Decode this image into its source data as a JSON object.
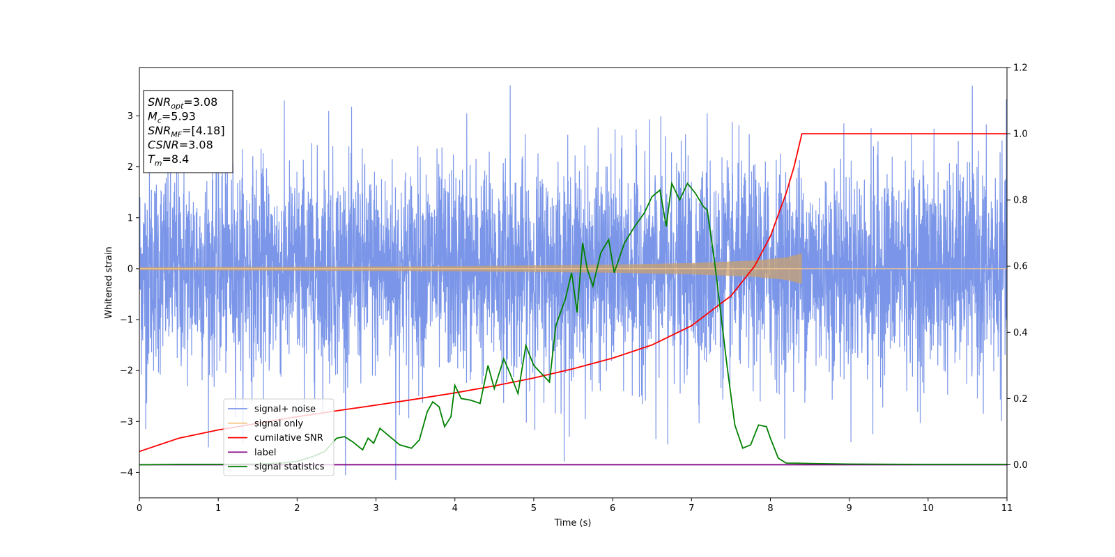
{
  "chart_data": {
    "type": "line",
    "xlabel": "Time (s)",
    "ylabel": "Whitened strain",
    "xlim": [
      0,
      11
    ],
    "ylim_left": [
      -4.5,
      3.95
    ],
    "ylim_right": [
      -0.1,
      1.2
    ],
    "x_ticks": [
      "0",
      "1",
      "2",
      "3",
      "4",
      "5",
      "6",
      "7",
      "8",
      "9",
      "10",
      "11"
    ],
    "y_left_ticks": [
      "3",
      "2",
      "1",
      "0",
      "−1",
      "−2",
      "−3",
      "−4"
    ],
    "y_right_ticks": [
      "1.2",
      "1.0",
      "0.8",
      "0.6",
      "0.4",
      "0.2",
      "0.0"
    ],
    "grid": false,
    "legend_position": "lower-left",
    "legend": [
      {
        "name": "signal+ noise",
        "color": "#7b96e8"
      },
      {
        "name": "signal only",
        "color": "#f5c98c"
      },
      {
        "name": "cumilative SNR",
        "color": "#ff0000"
      },
      {
        "name": "label",
        "color": "#800080"
      },
      {
        "name": "signal statistics",
        "color": "#008000"
      }
    ],
    "info_box": [
      {
        "main": "SNR",
        "sub": "opt",
        "value": "=3.08"
      },
      {
        "main": "M",
        "sub": "c",
        "value": "=5.93"
      },
      {
        "main": "SNR",
        "sub": "MF",
        "value": "=[4.18]"
      },
      {
        "main": "CSNR",
        "sub": "",
        "value": "=3.08"
      },
      {
        "main": "T",
        "sub": "m",
        "value": "=8.4"
      }
    ],
    "series": [
      {
        "name": "signal+ noise",
        "axis": "left",
        "color": "#7b96e8",
        "description_range": [
          -2.4,
          2.4
        ],
        "peaks": [
          {
            "x": 4.7,
            "y": 3.6
          },
          {
            "x": 3.25,
            "y": -4.15
          },
          {
            "x": 6.7,
            "y": -3.45
          },
          {
            "x": 6.55,
            "y": -3.35
          },
          {
            "x": 9.3,
            "y": -3.25
          },
          {
            "x": 0.08,
            "y": -3.15
          },
          {
            "x": 2.4,
            "y": 3.1
          },
          {
            "x": 7.2,
            "y": 3.05
          },
          {
            "x": 4.15,
            "y": 3.05
          },
          {
            "x": 5.45,
            "y": -3.3
          },
          {
            "x": 10.7,
            "y": -2.85
          },
          {
            "x": 1.05,
            "y": 2.9
          }
        ]
      },
      {
        "name": "signal only",
        "axis": "left",
        "color": "#f5c98c",
        "chirp_end": 8.4,
        "envelope": [
          [
            0,
            0.03
          ],
          [
            2,
            0.04
          ],
          [
            4,
            0.05
          ],
          [
            6,
            0.08
          ],
          [
            7,
            0.11
          ],
          [
            7.8,
            0.16
          ],
          [
            8.2,
            0.22
          ],
          [
            8.4,
            0.3
          ]
        ]
      },
      {
        "name": "cumilative SNR",
        "axis": "right",
        "color": "#ff0000",
        "points": [
          [
            0,
            0.04
          ],
          [
            0.5,
            0.08
          ],
          [
            1,
            0.105
          ],
          [
            1.5,
            0.125
          ],
          [
            2,
            0.145
          ],
          [
            2.5,
            0.163
          ],
          [
            3,
            0.18
          ],
          [
            3.5,
            0.198
          ],
          [
            4,
            0.217
          ],
          [
            4.5,
            0.238
          ],
          [
            5,
            0.262
          ],
          [
            5.5,
            0.29
          ],
          [
            6,
            0.322
          ],
          [
            6.5,
            0.362
          ],
          [
            7,
            0.42
          ],
          [
            7.5,
            0.51
          ],
          [
            7.8,
            0.6
          ],
          [
            8.0,
            0.69
          ],
          [
            8.2,
            0.82
          ],
          [
            8.3,
            0.9
          ],
          [
            8.4,
            1.0
          ],
          [
            9,
            1.0
          ],
          [
            10,
            1.0
          ],
          [
            11,
            1.0
          ]
        ]
      },
      {
        "name": "label",
        "axis": "right",
        "color": "#800080",
        "points": [
          [
            0,
            0.0
          ],
          [
            11,
            0.0
          ]
        ]
      },
      {
        "name": "signal statistics",
        "axis": "right",
        "color": "#008000",
        "points": [
          [
            0,
            0.0
          ],
          [
            0.5,
            0.001
          ],
          [
            1.0,
            0.001
          ],
          [
            1.5,
            0.002
          ],
          [
            1.8,
            0.005
          ],
          [
            2.0,
            0.01
          ],
          [
            2.2,
            0.025
          ],
          [
            2.35,
            0.04
          ],
          [
            2.5,
            0.08
          ],
          [
            2.6,
            0.085
          ],
          [
            2.7,
            0.07
          ],
          [
            2.83,
            0.045
          ],
          [
            2.9,
            0.08
          ],
          [
            2.97,
            0.065
          ],
          [
            3.05,
            0.11
          ],
          [
            3.15,
            0.09
          ],
          [
            3.3,
            0.06
          ],
          [
            3.45,
            0.05
          ],
          [
            3.55,
            0.075
          ],
          [
            3.65,
            0.16
          ],
          [
            3.72,
            0.19
          ],
          [
            3.8,
            0.175
          ],
          [
            3.87,
            0.115
          ],
          [
            3.95,
            0.145
          ],
          [
            4.0,
            0.24
          ],
          [
            4.08,
            0.2
          ],
          [
            4.2,
            0.195
          ],
          [
            4.32,
            0.185
          ],
          [
            4.42,
            0.3
          ],
          [
            4.5,
            0.23
          ],
          [
            4.62,
            0.32
          ],
          [
            4.7,
            0.275
          ],
          [
            4.8,
            0.215
          ],
          [
            4.9,
            0.36
          ],
          [
            5.0,
            0.3
          ],
          [
            5.1,
            0.275
          ],
          [
            5.2,
            0.25
          ],
          [
            5.28,
            0.42
          ],
          [
            5.4,
            0.5
          ],
          [
            5.48,
            0.58
          ],
          [
            5.55,
            0.46
          ],
          [
            5.62,
            0.67
          ],
          [
            5.68,
            0.59
          ],
          [
            5.75,
            0.54
          ],
          [
            5.85,
            0.64
          ],
          [
            5.95,
            0.68
          ],
          [
            6.02,
            0.58
          ],
          [
            6.15,
            0.67
          ],
          [
            6.28,
            0.72
          ],
          [
            6.4,
            0.76
          ],
          [
            6.5,
            0.81
          ],
          [
            6.6,
            0.83
          ],
          [
            6.68,
            0.72
          ],
          [
            6.75,
            0.85
          ],
          [
            6.85,
            0.8
          ],
          [
            6.95,
            0.85
          ],
          [
            7.05,
            0.82
          ],
          [
            7.15,
            0.78
          ],
          [
            7.2,
            0.77
          ],
          [
            7.3,
            0.6
          ],
          [
            7.45,
            0.3
          ],
          [
            7.55,
            0.12
          ],
          [
            7.65,
            0.05
          ],
          [
            7.75,
            0.06
          ],
          [
            7.85,
            0.12
          ],
          [
            7.95,
            0.115
          ],
          [
            8.0,
            0.08
          ],
          [
            8.1,
            0.02
          ],
          [
            8.2,
            0.005
          ],
          [
            8.5,
            0.004
          ],
          [
            9.0,
            0.002
          ],
          [
            10.0,
            0.001
          ],
          [
            11.0,
            0.001
          ]
        ]
      }
    ]
  }
}
